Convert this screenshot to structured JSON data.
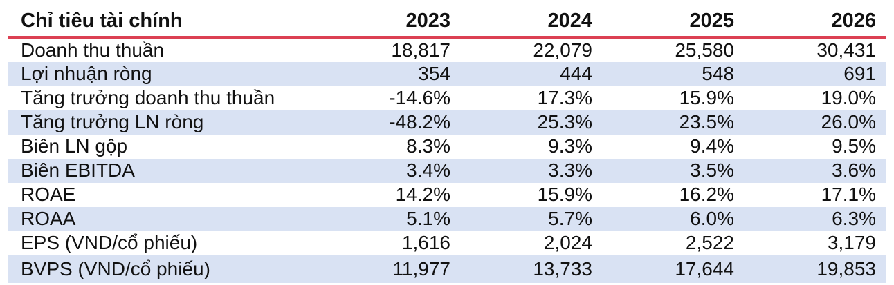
{
  "table": {
    "header": {
      "label": "Chỉ tiêu tài chính",
      "years": [
        "2023",
        "2024",
        "2025",
        "2026"
      ]
    },
    "rows": [
      {
        "label": "Doanh thu thuần",
        "values": [
          "18,817",
          "22,079",
          "25,580",
          "30,431"
        ]
      },
      {
        "label": "Lợi nhuận ròng",
        "values": [
          "354",
          "444",
          "548",
          "691"
        ]
      },
      {
        "label": "Tăng trưởng doanh thu thuần",
        "values": [
          "-14.6%",
          "17.3%",
          "15.9%",
          "19.0%"
        ]
      },
      {
        "label": "Tăng trưởng LN ròng",
        "values": [
          "-48.2%",
          "25.3%",
          "23.5%",
          "26.0%"
        ]
      },
      {
        "label": "Biên LN gộp",
        "values": [
          "8.3%",
          "9.3%",
          "9.4%",
          "9.5%"
        ]
      },
      {
        "label": "Biên EBITDA",
        "values": [
          "3.4%",
          "3.3%",
          "3.5%",
          "3.6%"
        ]
      },
      {
        "label": "ROAE",
        "values": [
          "14.2%",
          "15.9%",
          "16.2%",
          "17.1%"
        ]
      },
      {
        "label": "ROAA",
        "values": [
          "5.1%",
          "5.7%",
          "6.0%",
          "6.3%"
        ]
      },
      {
        "label": "EPS (VND/cổ phiếu)",
        "values": [
          "1,616",
          "2,024",
          "2,522",
          "3,179"
        ]
      },
      {
        "label": "BVPS (VND/cổ phiếu)",
        "values": [
          "11,977",
          "13,733",
          "17,644",
          "19,853"
        ]
      }
    ],
    "colors": {
      "stripe": "#D9E2F3",
      "header_rule": "#DC4053",
      "text": "#111111"
    }
  }
}
